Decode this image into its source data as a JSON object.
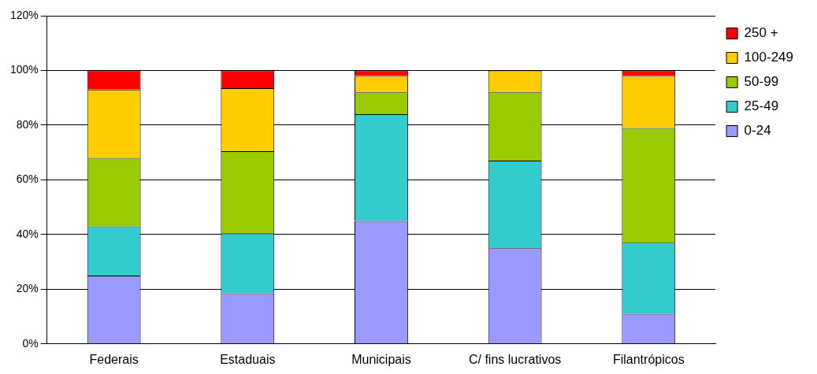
{
  "chart_data": {
    "type": "bar",
    "stacked": true,
    "categories": [
      "Federais",
      "Estaduais",
      "Municipais",
      "C/ fins lucrativos",
      "Filantrópicos"
    ],
    "series": [
      {
        "name": "0-24",
        "color": "#9999ff",
        "values": [
          25,
          18.5,
          45,
          35,
          11
        ]
      },
      {
        "name": "25-49",
        "color": "#33cccc",
        "values": [
          18,
          22,
          39,
          32,
          26
        ]
      },
      {
        "name": "50-99",
        "color": "#99cc00",
        "values": [
          25,
          30,
          8,
          25,
          42
        ]
      },
      {
        "name": "100-249",
        "color": "#ffcc00",
        "values": [
          25,
          23,
          6,
          8,
          19
        ]
      },
      {
        "name": "250 +",
        "color": "#ff0000",
        "values": [
          7,
          6.5,
          2,
          0,
          2
        ]
      }
    ],
    "ylim": [
      0,
      120
    ],
    "yticks": [
      {
        "value": 0,
        "label": "0%"
      },
      {
        "value": 20,
        "label": "20%"
      },
      {
        "value": 40,
        "label": "40%"
      },
      {
        "value": 60,
        "label": "60%"
      },
      {
        "value": 80,
        "label": "80%"
      },
      {
        "value": 100,
        "label": "100%"
      },
      {
        "value": 120,
        "label": "120%"
      }
    ],
    "grid": "y",
    "legend": "right"
  }
}
